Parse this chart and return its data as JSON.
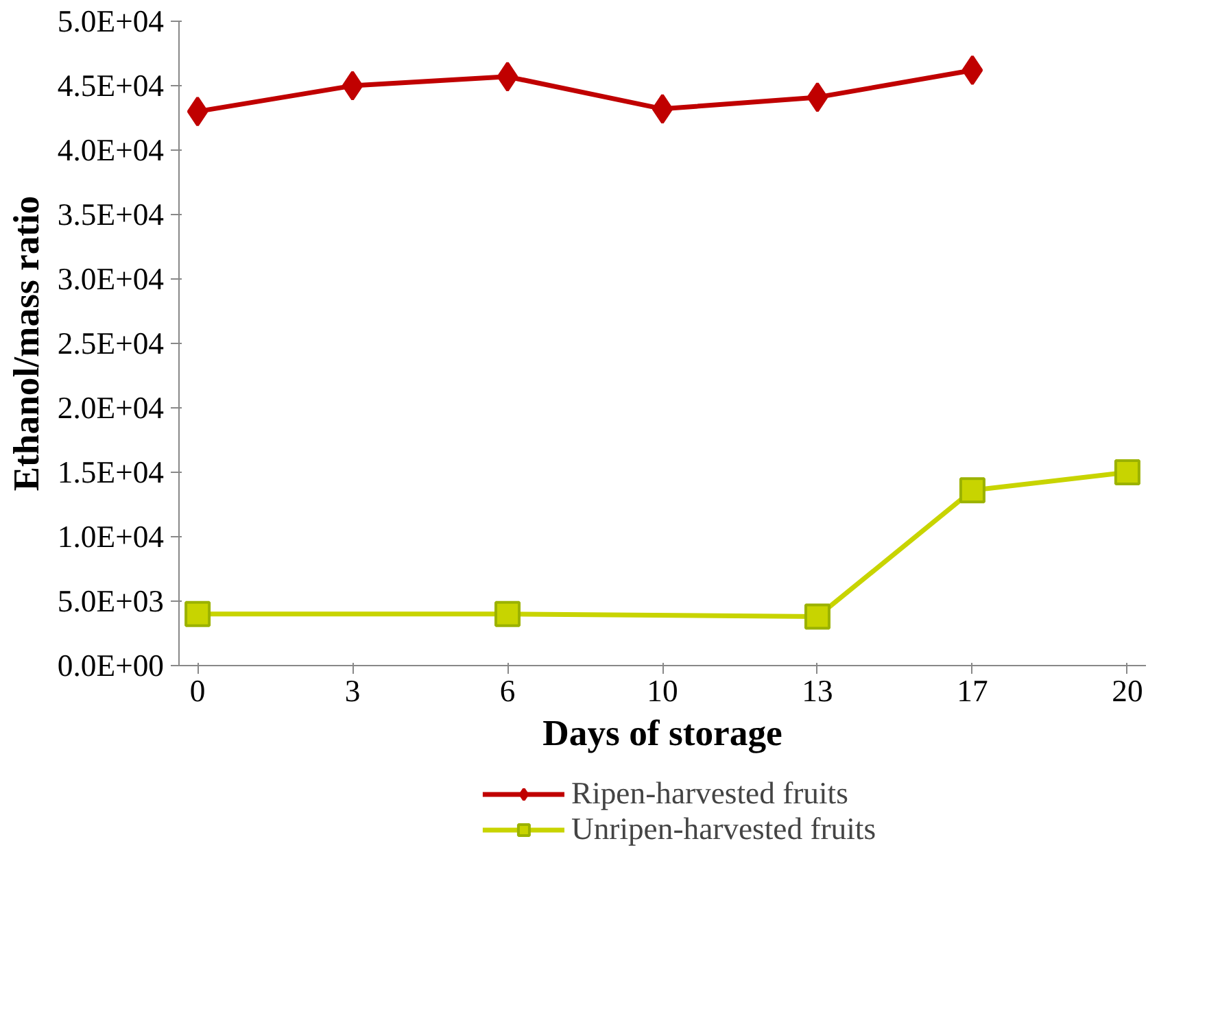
{
  "chart_data": {
    "type": "line",
    "xlabel": "Days of storage",
    "ylabel": "Ethanol/mass ratio",
    "categories": [
      "0",
      "3",
      "6",
      "10",
      "13",
      "17",
      "20"
    ],
    "series": [
      {
        "name": "Ripen-harvested fruits",
        "color": "#c00000",
        "marker": "diamond",
        "values": [
          43000,
          45000,
          45700,
          43200,
          44100,
          46200,
          null
        ]
      },
      {
        "name": "Unripen-harvested fruits",
        "color": "#c8d400",
        "marker": "square",
        "x": [
          "0",
          "6",
          "13",
          "17",
          "20"
        ],
        "values": [
          4000,
          4000,
          3800,
          13600,
          15000
        ]
      }
    ],
    "ylim": [
      0,
      50000
    ],
    "yticks": [
      {
        "value": 0,
        "label": "0.0E+00"
      },
      {
        "value": 5000,
        "label": "5.0E+03"
      },
      {
        "value": 10000,
        "label": "1.0E+04"
      },
      {
        "value": 15000,
        "label": "1.5E+04"
      },
      {
        "value": 20000,
        "label": "2.0E+04"
      },
      {
        "value": 25000,
        "label": "2.5E+04"
      },
      {
        "value": 30000,
        "label": "3.0E+04"
      },
      {
        "value": 35000,
        "label": "3.5E+04"
      },
      {
        "value": 40000,
        "label": "4.0E+04"
      },
      {
        "value": 45000,
        "label": "4.5E+04"
      },
      {
        "value": 50000,
        "label": "5.0E+04"
      }
    ],
    "grid": false,
    "legend": "bottom",
    "line_style": "solid"
  }
}
